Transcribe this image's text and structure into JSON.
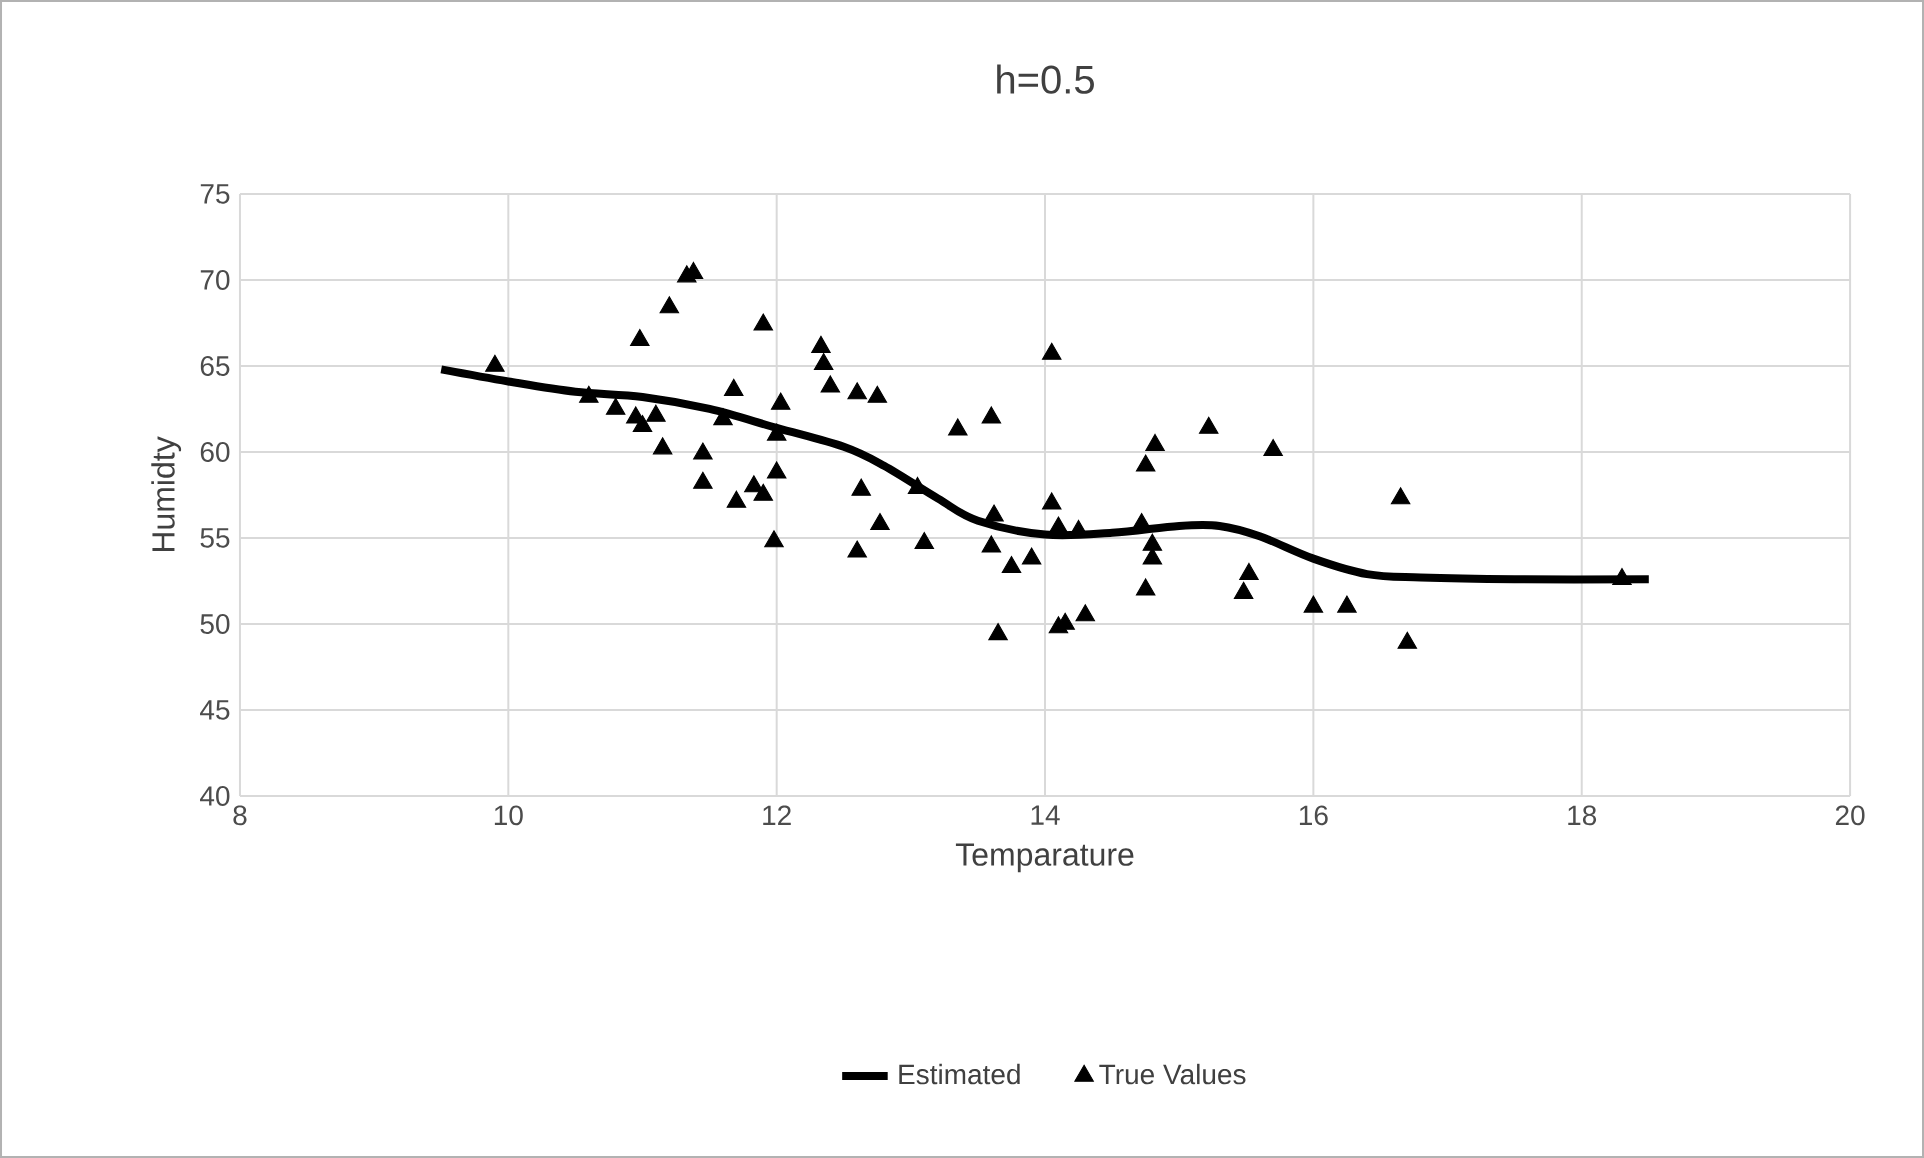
{
  "chart_data": {
    "type": "scatter",
    "title": "h=0.5",
    "xlabel": "Temparature",
    "ylabel": "Humidty",
    "xlim": [
      8,
      20
    ],
    "ylim": [
      40,
      75
    ],
    "xticks": [
      8,
      10,
      12,
      14,
      16,
      18,
      20
    ],
    "yticks": [
      40,
      45,
      50,
      55,
      60,
      65,
      70,
      75
    ],
    "grid": true,
    "legend": "bottom",
    "series": [
      {
        "name": "Estimated",
        "type": "line",
        "color": "#000000",
        "marker": "none",
        "line_style": "solid",
        "x": [
          9.5,
          10,
          10.5,
          11,
          11.5,
          12,
          12.5,
          12.8,
          13.2,
          13.5,
          14,
          14.5,
          15,
          15.3,
          15.6,
          16,
          16.4,
          16.8,
          17.5,
          18.5
        ],
        "values": [
          64.8,
          64.1,
          63.5,
          63.2,
          62.5,
          61.4,
          60.3,
          59.2,
          57.3,
          56,
          55.2,
          55.3,
          55.7,
          55.7,
          55.1,
          53.8,
          52.9,
          52.7,
          52.6,
          52.6
        ]
      },
      {
        "name": "True Values",
        "color": "#000000",
        "marker": "triangle",
        "x": [
          9.9,
          10.6,
          10.8,
          10.95,
          11.0,
          10.98,
          11.1,
          11.15,
          11.2,
          11.33,
          11.38,
          11.45,
          11.45,
          11.6,
          11.68,
          11.7,
          11.83,
          11.9,
          11.9,
          11.98,
          12.0,
          12.0,
          12.03,
          12.33,
          12.35,
          12.4,
          12.6,
          12.63,
          12.6,
          12.75,
          12.77,
          13.05,
          13.1,
          13.35,
          13.6,
          13.62,
          13.6,
          13.65,
          13.75,
          13.9,
          14.05,
          14.05,
          14.1,
          14.1,
          14.15,
          14.25,
          14.3,
          14.72,
          14.75,
          14.75,
          14.8,
          14.8,
          14.82,
          15.22,
          15.48,
          15.52,
          15.7,
          16.0,
          16.25,
          16.65,
          16.7,
          18.3
        ],
        "values": [
          65,
          63.2,
          62.5,
          62,
          61.5,
          66.5,
          62.1,
          60.2,
          68.4,
          70.2,
          70.4,
          59.9,
          58.2,
          61.9,
          63.6,
          57.1,
          58,
          57.5,
          67.4,
          54.8,
          58.8,
          61.0,
          62.8,
          66.1,
          65.1,
          63.8,
          63.4,
          57.8,
          54.2,
          63.2,
          55.8,
          57.9,
          54.7,
          61.3,
          62,
          56.3,
          54.5,
          49.4,
          53.3,
          53.8,
          65.7,
          57,
          55.6,
          49.8,
          50,
          55.4,
          50.5,
          55.8,
          59.2,
          52,
          53.8,
          54.6,
          60.4,
          61.4,
          51.8,
          52.9,
          60.1,
          51,
          51,
          57.3,
          48.9,
          52.6
        ]
      }
    ]
  }
}
